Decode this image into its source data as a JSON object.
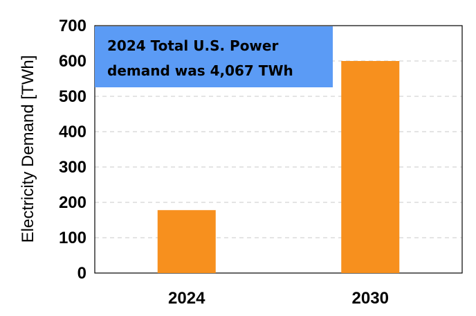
{
  "chart_data": {
    "type": "bar",
    "categories": [
      "2024",
      "2030"
    ],
    "values": [
      178,
      600
    ],
    "ylabel": "Electricity Demand [TWh]",
    "xlabel": "",
    "ylim": [
      0,
      700
    ],
    "yticks": [
      0,
      100,
      200,
      300,
      400,
      500,
      600,
      700
    ],
    "grid": true,
    "bar_color": "#F7901E",
    "annotation": {
      "lines": [
        "2024 Total U.S. Power",
        "demand was 4,067 TWh"
      ],
      "background": "#5B9BF5"
    }
  }
}
